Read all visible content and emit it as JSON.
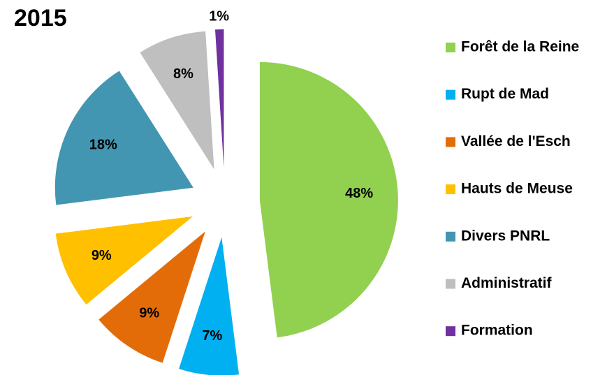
{
  "chart_data": {
    "type": "pie",
    "title": "2015",
    "categories": [
      "Forêt de la Reine",
      "Rupt de Mad",
      "Vallée de l'Esch",
      "Hauts de Meuse",
      "Divers PNRL",
      "Administratif",
      "Formation"
    ],
    "values": [
      48,
      7,
      9,
      9,
      18,
      8,
      1
    ],
    "value_labels": [
      "48%",
      "7%",
      "9%",
      "9%",
      "18%",
      "8%",
      "1%"
    ],
    "colors": [
      "#92d050",
      "#00b0f0",
      "#e36c09",
      "#ffc000",
      "#4396b2",
      "#bfbfbf",
      "#7030a0"
    ],
    "legend": "right"
  }
}
